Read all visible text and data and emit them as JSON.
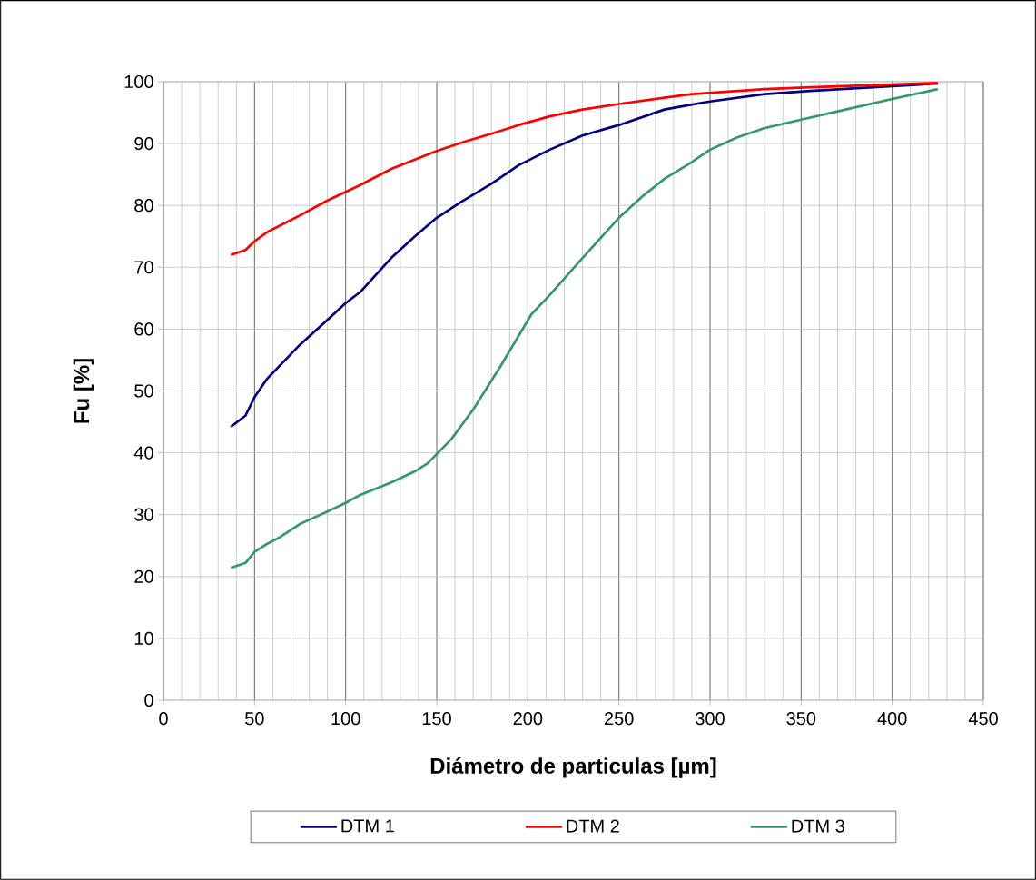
{
  "chart_data": {
    "type": "line",
    "xlabel": "Diámetro de particulas [µm]",
    "ylabel": "Fu [%]",
    "xlim": [
      0,
      450
    ],
    "xticks": [
      0,
      50,
      100,
      150,
      200,
      250,
      300,
      350,
      400,
      450
    ],
    "ylim": [
      0,
      100
    ],
    "yticks": [
      0,
      10,
      20,
      30,
      40,
      50,
      60,
      70,
      80,
      90,
      100
    ],
    "grid": true,
    "legend": "bottom",
    "series": [
      {
        "name": "DTM 1",
        "color": "#000080",
        "x": [
          37,
          45,
          50,
          57,
          75,
          90,
          100,
          108,
          125,
          138,
          150,
          163,
          180,
          195,
          212,
          230,
          250,
          275,
          290,
          300,
          330,
          355,
          425
        ],
        "values": [
          44.2,
          46,
          49,
          52,
          57.5,
          61.5,
          64.2,
          66,
          71.5,
          75,
          78,
          80.5,
          83.5,
          86.5,
          89,
          91.3,
          93,
          95.5,
          96.3,
          96.8,
          98,
          98.5,
          99.7
        ]
      },
      {
        "name": "DTM 2",
        "color": "#ff0000",
        "x": [
          37,
          45,
          50,
          57,
          75,
          90,
          100,
          108,
          125,
          150,
          163,
          180,
          195,
          212,
          230,
          250,
          275,
          290,
          330,
          355,
          425
        ],
        "values": [
          72,
          72.8,
          74.2,
          75.7,
          78.4,
          80.8,
          82.2,
          83.3,
          85.9,
          88.8,
          90.1,
          91.6,
          93,
          94.4,
          95.5,
          96.4,
          97.4,
          98,
          98.8,
          99.1,
          99.8
        ]
      },
      {
        "name": "DTM 3",
        "color": "#339966",
        "x": [
          37,
          45,
          50,
          57,
          63,
          75,
          90,
          100,
          108,
          125,
          138,
          145,
          150,
          158,
          170,
          185,
          202,
          212,
          230,
          250,
          263,
          275,
          290,
          300,
          315,
          330,
          355,
          370,
          400,
          425
        ],
        "values": [
          21.4,
          22.2,
          24,
          25.3,
          26.2,
          28.5,
          30.5,
          31.9,
          33.2,
          35.2,
          37,
          38.3,
          39.8,
          42.2,
          47,
          54,
          62.4,
          65.5,
          71.5,
          78,
          81.5,
          84.3,
          87,
          89,
          91,
          92.5,
          94.2,
          95.2,
          97.2,
          98.8
        ]
      }
    ]
  }
}
